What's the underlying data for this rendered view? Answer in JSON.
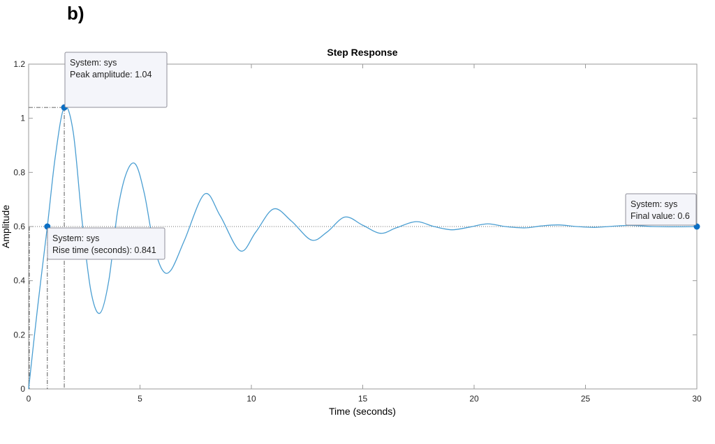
{
  "figure_label": "b)",
  "chart_data": {
    "type": "line",
    "title": "Step Response",
    "xlabel": "Time (seconds)",
    "ylabel": "Amplitude",
    "xlim": [
      0,
      30
    ],
    "ylim": [
      0,
      1.2
    ],
    "xticks": [
      0,
      5,
      10,
      15,
      20,
      25,
      30
    ],
    "yticks": [
      0,
      0.2,
      0.4,
      0.6,
      0.8,
      1,
      1.2
    ],
    "xtick_labels": [
      "0",
      "5",
      "10",
      "15",
      "20",
      "25",
      "30"
    ],
    "ytick_labels": [
      "0",
      "0.2",
      "0.4",
      "0.6",
      "0.8",
      "1",
      "1.2"
    ],
    "grid": false,
    "line_color": "#4a9ed2",
    "marker_color": "#0b6fc4",
    "series": [
      {
        "x": [
          0,
          0.4,
          0.841,
          1.2,
          1.6,
          2.0,
          2.4,
          2.8,
          3.2,
          3.6,
          4.0,
          4.4,
          4.8,
          5.2,
          5.6,
          6.0,
          6.4,
          7.0,
          7.9,
          8.6,
          9.5,
          10.2,
          11.0,
          11.8,
          12.7,
          13.4,
          14.2,
          15.0,
          15.8,
          16.5,
          17.4,
          18.2,
          19.0,
          19.8,
          20.6,
          21.4,
          22.3,
          23.0,
          23.8,
          24.6,
          25.4,
          26.2,
          27.0,
          28.0,
          29.0,
          30.0
        ],
        "y": [
          0,
          0.3,
          0.6,
          0.86,
          1.04,
          0.95,
          0.62,
          0.36,
          0.28,
          0.4,
          0.66,
          0.8,
          0.83,
          0.72,
          0.54,
          0.44,
          0.44,
          0.55,
          0.72,
          0.64,
          0.51,
          0.58,
          0.665,
          0.62,
          0.55,
          0.58,
          0.635,
          0.605,
          0.575,
          0.595,
          0.618,
          0.6,
          0.588,
          0.598,
          0.61,
          0.6,
          0.595,
          0.602,
          0.606,
          0.6,
          0.597,
          0.601,
          0.604,
          0.6,
          0.599,
          0.6
        ]
      }
    ],
    "reference_lines": {
      "final_value_level": 0.6,
      "peak": {
        "x": 1.6,
        "y": 1.04
      },
      "rise": {
        "x": 0.841,
        "y": 0.6
      },
      "rise_start_x": 0.0
    },
    "annotations": [
      {
        "line1": "System: sys",
        "line2": "Peak amplitude: 1.04",
        "x": 1.6,
        "y": 1.04
      },
      {
        "line1": "System: sys",
        "line2": "Rise time (seconds): 0.841",
        "x": 0.841,
        "y": 0.6
      },
      {
        "line1": "System: sys",
        "line2": "Final value: 0.6",
        "x": 30,
        "y": 0.6
      }
    ]
  }
}
